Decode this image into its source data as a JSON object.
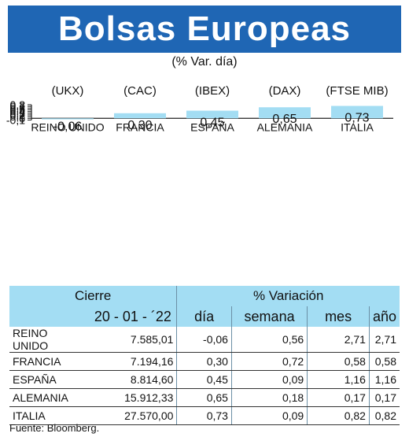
{
  "header": {
    "title": "Bolsas Europeas",
    "subtitle": "(% Var. día)"
  },
  "chart_data": {
    "type": "bar",
    "index_codes": [
      "(UKX)",
      "(CAC)",
      "(IBEX)",
      "(DAX)",
      "(FTSE MIB)"
    ],
    "categories": [
      "REINO UNIDO",
      "FRANCIA",
      "ESPAÑA",
      "ALEMANIA",
      "ITALIA"
    ],
    "values": [
      -0.06,
      0.3,
      0.45,
      0.65,
      0.73
    ],
    "value_labels": [
      "-0,06",
      "0,30",
      "0,45",
      "0,65",
      "0,73"
    ],
    "yticks": [
      "0,8",
      "0,7",
      "0,6",
      "0,5",
      "0,4",
      "0,3",
      "0,2",
      "0,1",
      "0",
      "-0,1"
    ],
    "ylim": [
      -0.1,
      0.8
    ],
    "grid": false,
    "bar_color": "#a3ddf3"
  },
  "table": {
    "header_cierre": "Cierre",
    "header_variacion": "% Variación",
    "date": "20 - 01 - ´22",
    "col_dia": "día",
    "col_semana": "semana",
    "col_mes": "mes",
    "col_ano": "año",
    "rows": [
      {
        "name": "REINO UNIDO",
        "cierre": "7.585,01",
        "dia": "-0,06",
        "semana": "0,56",
        "mes": "2,71",
        "ano": "2,71"
      },
      {
        "name": "FRANCIA",
        "cierre": "7.194,16",
        "dia": "0,30",
        "semana": "0,72",
        "mes": "0,58",
        "ano": "0,58"
      },
      {
        "name": "ESPAÑA",
        "cierre": "8.814,60",
        "dia": "0,45",
        "semana": "0,09",
        "mes": "1,16",
        "ano": "1,16"
      },
      {
        "name": "ALEMANIA",
        "cierre": "15.912,33",
        "dia": "0,65",
        "semana": "0,18",
        "mes": "0,17",
        "ano": "0,17"
      },
      {
        "name": "ITALIA",
        "cierre": "27.570,00",
        "dia": "0,73",
        "semana": "0,09",
        "mes": "0,82",
        "ano": "0,82"
      }
    ]
  },
  "footer": {
    "source": "Fuente: Bloomberg."
  },
  "colors": {
    "banner": "#1f66b4",
    "accent": "#a3ddf3"
  }
}
